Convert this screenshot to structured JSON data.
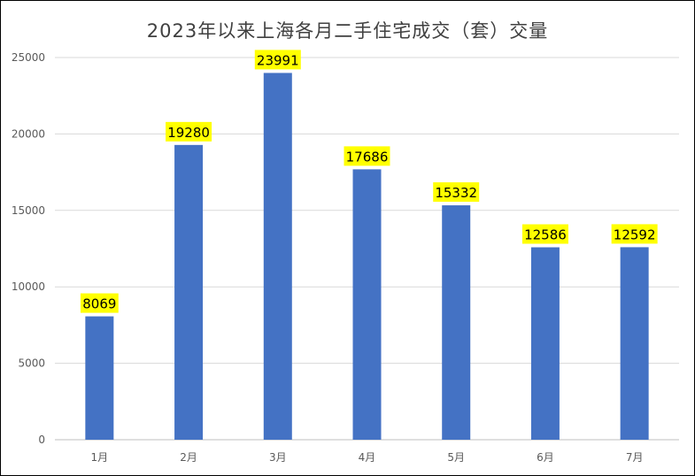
{
  "chart_data": {
    "type": "bar",
    "title": "2023年以来上海各月二手住宅成交（套）交量",
    "categories": [
      "1月",
      "2月",
      "3月",
      "4月",
      "5月",
      "6月",
      "7月"
    ],
    "values": [
      8069,
      19280,
      23991,
      17686,
      15332,
      12586,
      12592
    ],
    "xlabel": "",
    "ylabel": "",
    "ylim": [
      0,
      25000
    ],
    "yticks": [
      0,
      5000,
      10000,
      15000,
      20000,
      25000
    ],
    "grid": true,
    "legend": "none",
    "bar_color": "#4472C4",
    "label_highlight": "#FFFF00"
  }
}
